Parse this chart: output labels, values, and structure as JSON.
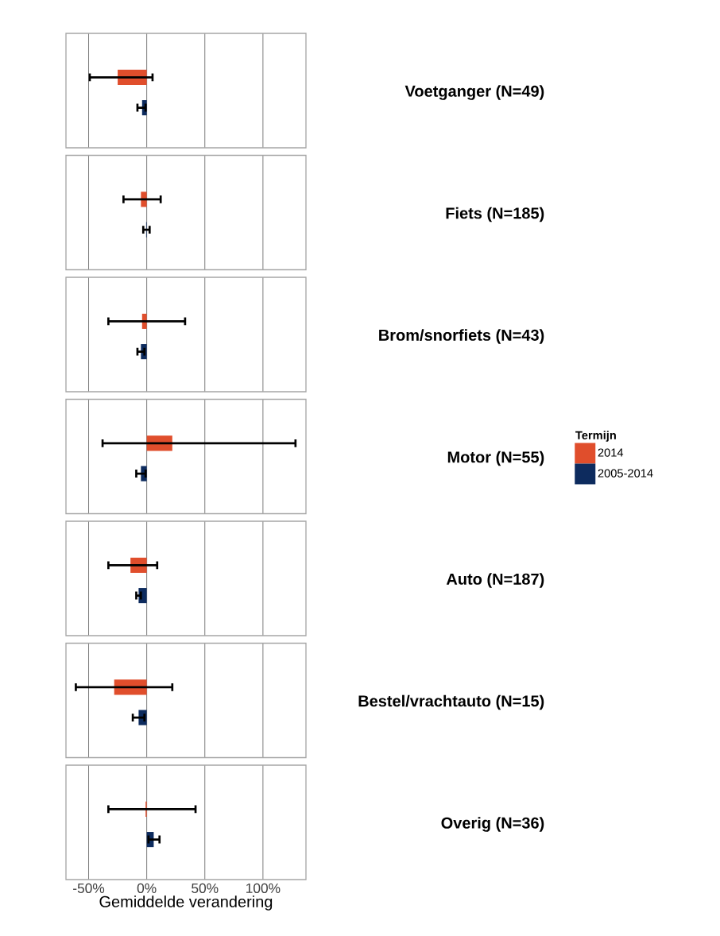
{
  "chart_data": {
    "type": "bar",
    "orientation": "horizontal",
    "xlabel": "Gemiddelde verandering",
    "legend_title": "Termijn",
    "legend": "right",
    "grid": "x",
    "categories": [
      "Voetganger (N=49)",
      "Fiets (N=185)",
      "Brom/snorfiets (N=43)",
      "Motor (N=55)",
      "Auto (N=187)",
      "Bestel/vrachtauto (N=15)",
      "Overig (N=36)"
    ],
    "xlim": [
      -69.5,
      137
    ],
    "xticks": [
      {
        "value": -50,
        "label": "-50%"
      },
      {
        "value": 0,
        "label": "0%"
      },
      {
        "value": 50,
        "label": "50%"
      },
      {
        "value": 100,
        "label": "100%"
      }
    ],
    "series": [
      {
        "name": "2014",
        "color": "#e04e2c",
        "values": [
          -25,
          -5,
          -4,
          22,
          -14,
          -28,
          -1
        ],
        "errors": [
          [
            -49,
            5
          ],
          [
            -20,
            12
          ],
          [
            -33,
            33
          ],
          [
            -38,
            128
          ],
          [
            -33,
            9
          ],
          [
            -61,
            22
          ],
          [
            -33,
            42
          ]
        ]
      },
      {
        "name": "2005-2014",
        "color": "#0d2b5e",
        "values": [
          -4,
          -0.5,
          -5,
          -5,
          -7,
          -7,
          6
        ],
        "errors": [
          [
            -8,
            -1
          ],
          [
            -3,
            2.5
          ],
          [
            -8,
            -2
          ],
          [
            -9,
            -1
          ],
          [
            -9,
            -5
          ],
          [
            -12,
            -2
          ],
          [
            1.5,
            11
          ]
        ]
      }
    ]
  }
}
